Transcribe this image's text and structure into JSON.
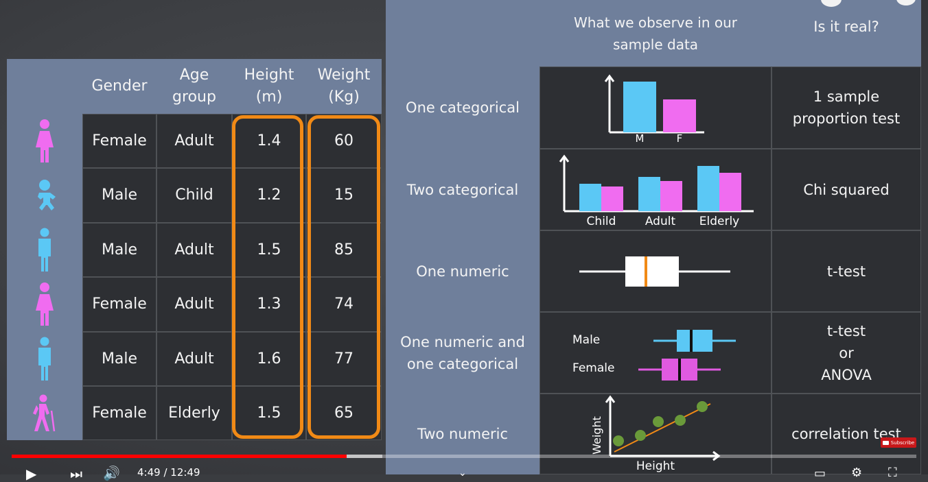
{
  "left_table": {
    "headers": {
      "gender": "Gender",
      "age_group": "Age\ngroup",
      "height": "Height\n(m)",
      "weight": "Weight\n(Kg)"
    },
    "rows": [
      {
        "icon": "female-adult-icon",
        "gender": "Female",
        "age_group": "Adult",
        "height": "1.4",
        "weight": "60"
      },
      {
        "icon": "baby-icon",
        "gender": "Male",
        "age_group": "Child",
        "height": "1.2",
        "weight": "15"
      },
      {
        "icon": "male-adult-icon",
        "gender": "Male",
        "age_group": "Adult",
        "height": "1.5",
        "weight": "85"
      },
      {
        "icon": "female-adult-icon",
        "gender": "Female",
        "age_group": "Adult",
        "height": "1.3",
        "weight": "74"
      },
      {
        "icon": "male-adult-icon",
        "gender": "Male",
        "age_group": "Adult",
        "height": "1.6",
        "weight": "77"
      },
      {
        "icon": "elderly-hiker-icon",
        "gender": "Female",
        "age_group": "Elderly",
        "height": "1.5",
        "weight": "65"
      }
    ]
  },
  "right_table": {
    "headers": {
      "observe": "What we observe in our\nsample data",
      "real": "Is it real?"
    },
    "rows": [
      {
        "type": "One categorical",
        "test": "1 sample\nproportion test"
      },
      {
        "type": "Two categorical",
        "test": "Chi squared"
      },
      {
        "type": "One numeric",
        "test": "t-test"
      },
      {
        "type": "One numeric and\none categorical",
        "test": "t-test\nor\nANOVA"
      },
      {
        "type": "Two numeric",
        "test": "correlation test"
      }
    ],
    "mini_charts": {
      "one_categorical": {
        "labels": [
          "M",
          "F"
        ],
        "values": [
          0.9,
          0.6
        ]
      },
      "two_categorical": {
        "labels": [
          "Child",
          "Adult",
          "Elderly"
        ],
        "series": [
          {
            "values": [
              0.6,
              0.75,
              1.0
            ]
          },
          {
            "values": [
              0.53,
              0.65,
              0.83
            ]
          }
        ]
      },
      "two_groups": {
        "labels": [
          "Male",
          "Female"
        ]
      },
      "scatter": {
        "xlabel": "Height",
        "ylabel": "Weight"
      }
    }
  },
  "colors": {
    "blue": "#5bc8f5",
    "pink": "#f06cf0",
    "orange": "#f18a16",
    "header": "#6f7f9b",
    "cell": "#2d2f33"
  },
  "player": {
    "time": "4:49 / 12:49",
    "subscribe": "Subscribe",
    "progress": 0.37,
    "buffered": 0.41
  }
}
